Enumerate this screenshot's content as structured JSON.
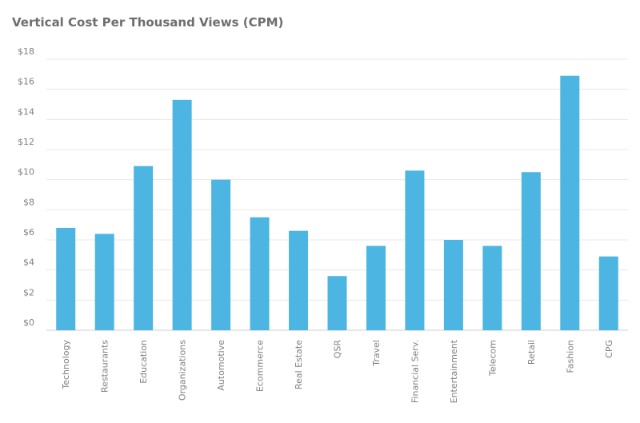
{
  "chart_data": {
    "type": "bar",
    "title": "Vertical Cost Per Thousand Views (CPM)",
    "xlabel": "",
    "ylabel": "",
    "categories": [
      "Technology",
      "Restaurants",
      "Education",
      "Organizations",
      "Automotive",
      "Ecommerce",
      "Real Estate",
      "QSR",
      "Travel",
      "Financial Serv.",
      "Entertainment",
      "Telecom",
      "Retail",
      "Fashion",
      "CPG"
    ],
    "values": [
      6.8,
      6.4,
      10.9,
      15.3,
      10.0,
      7.5,
      6.6,
      3.6,
      5.6,
      10.6,
      6.0,
      5.6,
      10.5,
      16.9,
      4.9
    ],
    "ylim": [
      0,
      18
    ],
    "yticks": [
      0,
      2,
      4,
      6,
      8,
      10,
      12,
      14,
      16,
      18
    ],
    "ytick_labels": [
      "$0",
      "$2",
      "$4",
      "$6",
      "$8",
      "$10",
      "$12",
      "$14",
      "$16",
      "$18"
    ],
    "grid": true,
    "legend": "none",
    "bar_color": "#4cb5e2",
    "grid_color": "#e8e8e8"
  }
}
